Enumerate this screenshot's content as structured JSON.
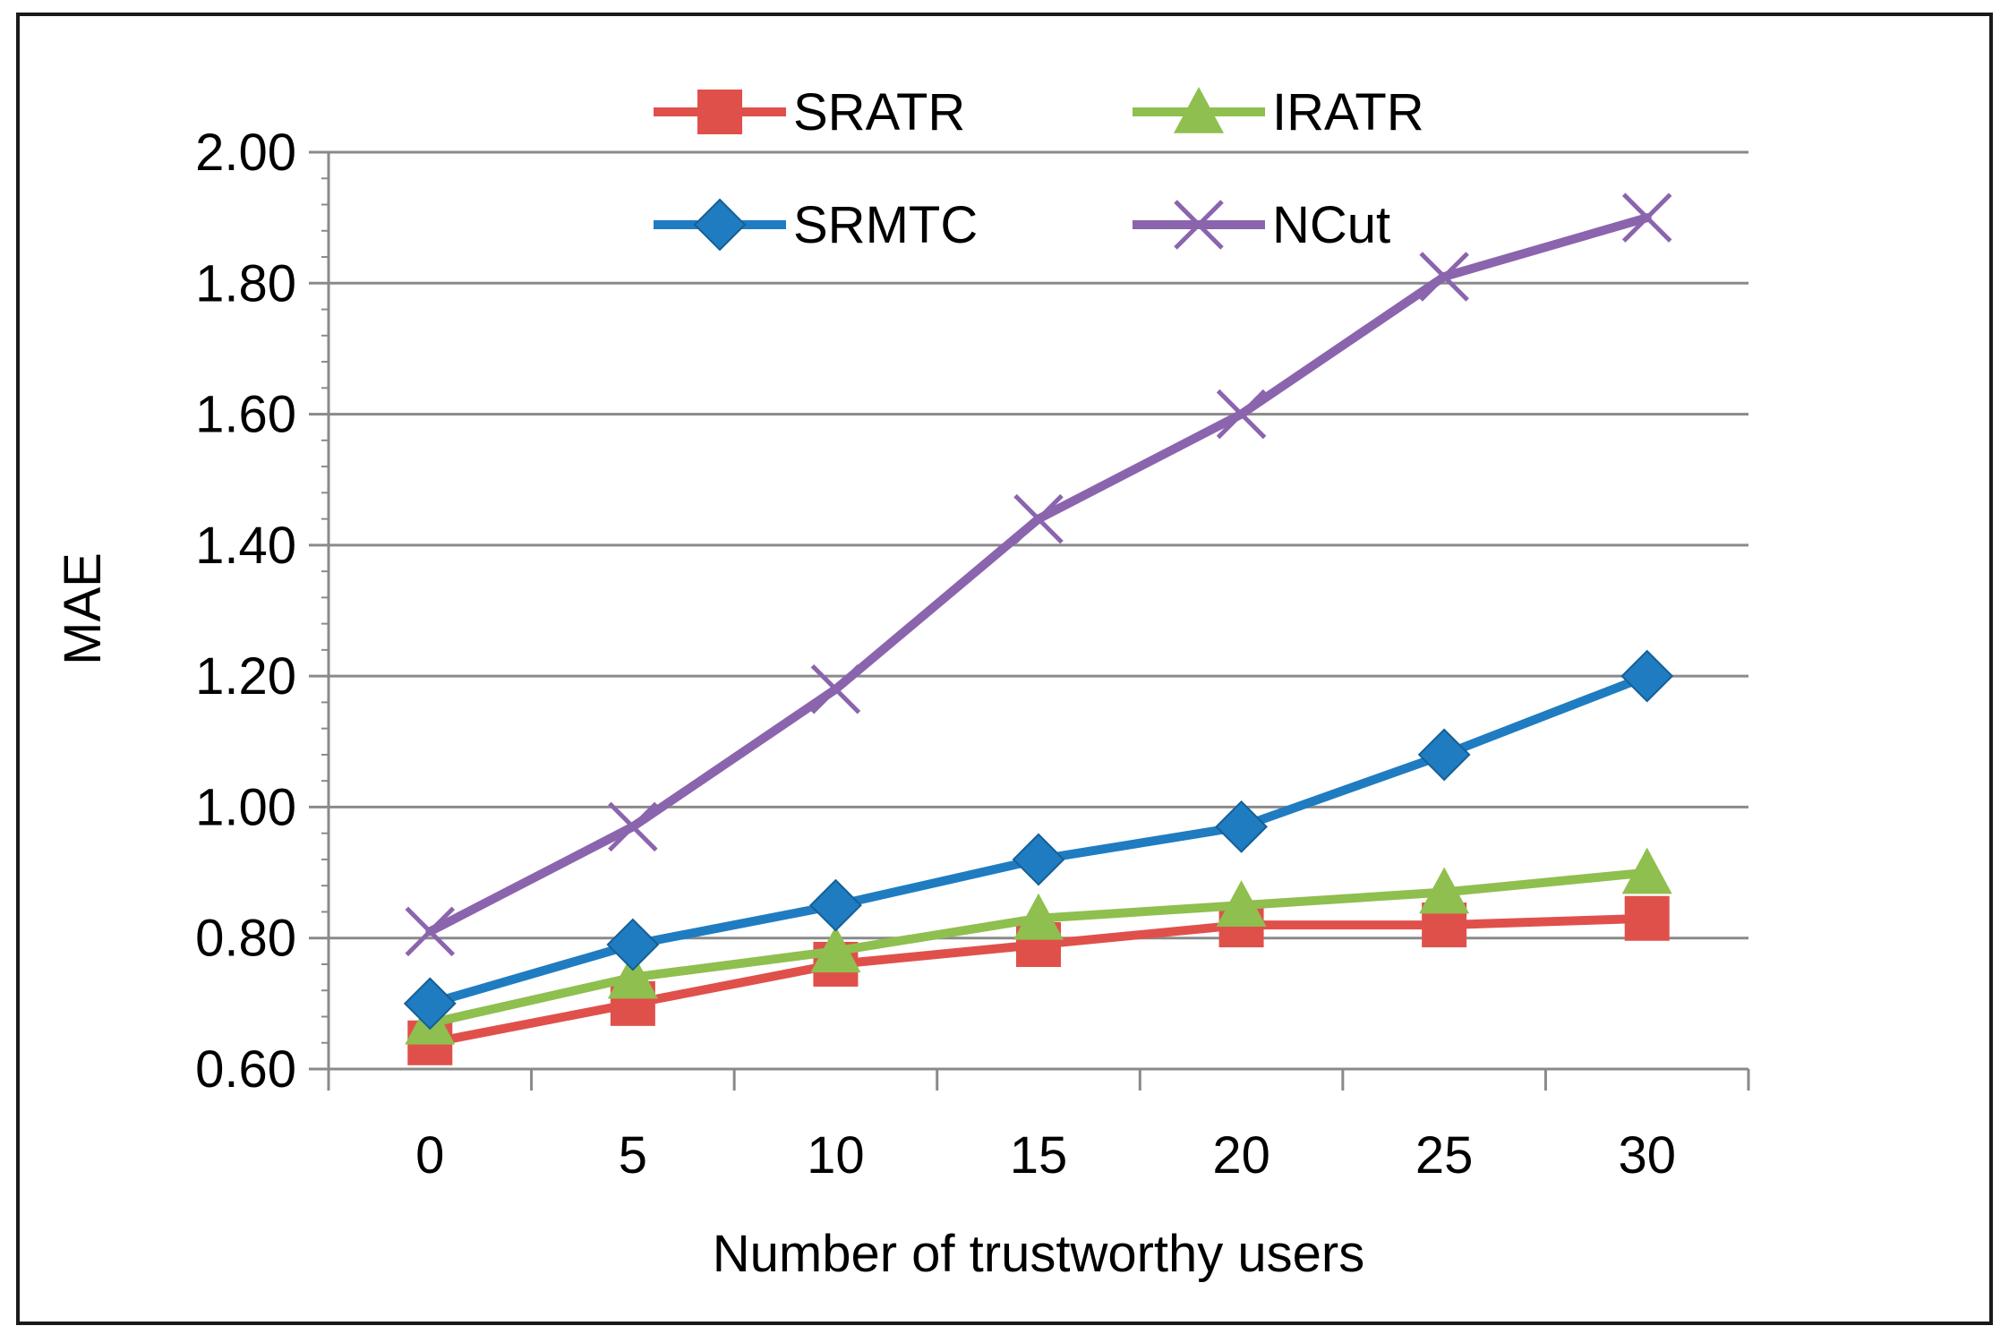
{
  "chart_data": {
    "type": "line",
    "title": "",
    "xlabel": "Number of trustworthy users",
    "ylabel": "MAE",
    "categories": [
      "0",
      "5",
      "10",
      "15",
      "20",
      "25",
      "30"
    ],
    "ylim": [
      0.6,
      2.0
    ],
    "yticks": [
      "0.60",
      "0.80",
      "1.00",
      "1.20",
      "1.40",
      "1.60",
      "1.80",
      "2.00"
    ],
    "grid": true,
    "legend_position": "top",
    "series": [
      {
        "name": "SRATR",
        "marker": "square",
        "color": "#E0504B",
        "values": [
          0.64,
          0.7,
          0.76,
          0.79,
          0.82,
          0.82,
          0.83
        ]
      },
      {
        "name": "IRATR",
        "marker": "triangle",
        "color": "#8FBF4E",
        "values": [
          0.67,
          0.74,
          0.78,
          0.83,
          0.85,
          0.87,
          0.9
        ]
      },
      {
        "name": "SRMTC",
        "marker": "diamond",
        "color": "#1F7CC1",
        "values": [
          0.7,
          0.79,
          0.85,
          0.92,
          0.97,
          1.08,
          1.2
        ]
      },
      {
        "name": "NCut",
        "marker": "x",
        "color": "#8B64AE",
        "values": [
          0.81,
          0.97,
          1.18,
          1.44,
          1.6,
          1.81,
          1.9
        ]
      }
    ]
  }
}
